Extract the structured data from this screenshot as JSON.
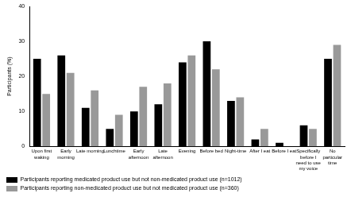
{
  "chart_data": {
    "type": "bar",
    "y_label": "Participants (%)",
    "categories": [
      "Upon first waking",
      "Early morning",
      "Late morning",
      "Lunchtime",
      "Early afternoon",
      "Late afternoon",
      "Evening",
      "Before bed",
      "Night-time",
      "After I eat",
      "Before I eat",
      "Specifically before I need to use my voice",
      "No particular time"
    ],
    "series": [
      {
        "name": "Participants reporting medicated product use but not non-medicated product use (n=1012)",
        "color": "#000000",
        "values": [
          25,
          26,
          11,
          5,
          10,
          12,
          24,
          30,
          13,
          2,
          1,
          6,
          25
        ]
      },
      {
        "name": "Participants reporting non-medicated product use but not medicated product use (n=360)",
        "color": "#999999",
        "values": [
          15,
          21,
          16,
          9,
          17,
          18,
          26,
          22,
          14,
          5,
          0,
          5,
          29
        ]
      }
    ],
    "ylim": [
      0,
      40
    ],
    "yticks": [
      0,
      10,
      20,
      30,
      40
    ],
    "grid": false,
    "legend": "bottom"
  }
}
